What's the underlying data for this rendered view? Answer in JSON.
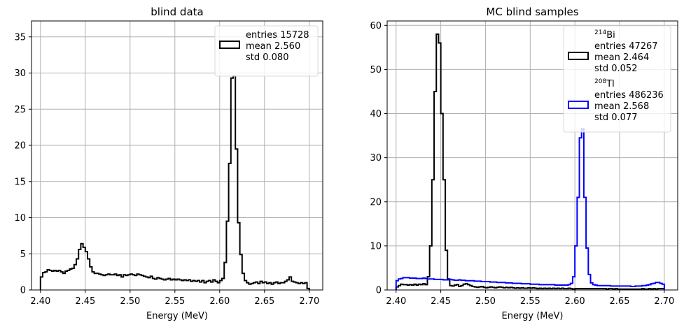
{
  "chart_data": [
    {
      "type": "step",
      "title": "blind data",
      "xlabel": "Energy (MeV)",
      "ylabel": "",
      "xlim": [
        2.39,
        2.715
      ],
      "ylim": [
        0,
        37.2
      ],
      "xticks": [
        "2.40",
        "2.45",
        "2.50",
        "2.55",
        "2.60",
        "2.65",
        "2.70"
      ],
      "yticks": [
        "0",
        "5",
        "10",
        "15",
        "20",
        "25",
        "30",
        "35"
      ],
      "grid": true,
      "legend_position": "top-right",
      "bin_edges_range": [
        2.4,
        2.7
      ],
      "bin_width": 0.0025,
      "series": [
        {
          "color": "#000000",
          "legend_lines": [
            "entries 15728",
            "mean  2.560",
            "std   0.080"
          ],
          "values": [
            1.8,
            2.4,
            2.5,
            2.8,
            2.7,
            2.6,
            2.7,
            2.6,
            2.7,
            2.5,
            2.3,
            2.6,
            2.7,
            2.9,
            3.0,
            3.5,
            4.3,
            5.6,
            6.4,
            5.9,
            5.3,
            4.3,
            3.2,
            2.5,
            2.3,
            2.3,
            2.2,
            2.1,
            2.0,
            2.1,
            2.2,
            2.1,
            2.1,
            2.2,
            2.0,
            2.1,
            1.8,
            2.1,
            2.0,
            2.1,
            2.2,
            2.1,
            2.0,
            2.2,
            2.1,
            2.0,
            1.9,
            1.8,
            1.7,
            1.9,
            1.6,
            1.5,
            1.7,
            1.6,
            1.5,
            1.4,
            1.5,
            1.6,
            1.4,
            1.5,
            1.4,
            1.5,
            1.4,
            1.3,
            1.4,
            1.3,
            1.4,
            1.2,
            1.3,
            1.2,
            1.3,
            1.1,
            1.3,
            1.0,
            1.2,
            1.3,
            1.1,
            1.4,
            1.2,
            1.0,
            1.3,
            1.6,
            3.8,
            9.5,
            17.5,
            29.3,
            29.6,
            19.5,
            9.3,
            4.9,
            2.3,
            1.3,
            1.0,
            0.8,
            0.9,
            1.0,
            1.1,
            0.9,
            1.2,
            1.0,
            1.1,
            0.9,
            1.0,
            0.8,
            1.0,
            1.1,
            0.9,
            1.0,
            1.0,
            1.2,
            1.4,
            1.8,
            1.2,
            1.1,
            1.0,
            0.9,
            1.0,
            0.9,
            1.0,
            0.2
          ]
        }
      ]
    },
    {
      "type": "step",
      "title": "MC blind samples",
      "xlabel": "Energy (MeV)",
      "ylabel": "",
      "xlim": [
        2.39,
        2.715
      ],
      "ylim": [
        0,
        61
      ],
      "xticks": [
        "2.40",
        "2.45",
        "2.50",
        "2.55",
        "2.60",
        "2.65",
        "2.70"
      ],
      "yticks": [
        "0",
        "10",
        "20",
        "30",
        "40",
        "50",
        "60"
      ],
      "grid": true,
      "legend_position": "top-right",
      "bin_edges_range": [
        2.4,
        2.7
      ],
      "bin_width": 0.0025,
      "series": [
        {
          "name_base": "Bi",
          "name_sup": "214",
          "color": "#000000",
          "legend_lines": [
            "entries 47267",
            "mean  2.464",
            "std   0.052"
          ],
          "values": [
            0.7,
            1.0,
            1.3,
            1.2,
            1.2,
            1.1,
            1.2,
            1.1,
            1.3,
            1.1,
            1.3,
            1.2,
            1.4,
            1.2,
            3.0,
            10.0,
            25.0,
            45.0,
            58.0,
            56.0,
            40.0,
            25.0,
            9.0,
            2.5,
            1.0,
            0.9,
            1.1,
            1.2,
            0.8,
            1.0,
            1.3,
            1.4,
            1.2,
            1.0,
            0.8,
            0.7,
            0.6,
            0.7,
            0.8,
            0.6,
            0.5,
            0.6,
            0.7,
            0.6,
            0.5,
            0.6,
            0.7,
            0.6,
            0.5,
            0.6,
            0.5,
            0.6,
            0.5,
            0.4,
            0.5,
            0.4,
            0.5,
            0.4,
            0.4,
            0.5,
            0.4,
            0.5,
            0.4,
            0.3,
            0.4,
            0.3,
            0.4,
            0.3,
            0.4,
            0.3,
            0.4,
            0.3,
            0.4,
            0.3,
            0.4,
            0.3,
            0.3,
            0.4,
            0.3,
            0.2,
            0.3,
            0.3,
            0.3,
            0.3,
            0.3,
            0.3,
            0.3,
            0.3,
            0.3,
            0.3,
            0.3,
            0.3,
            0.3,
            0.3,
            0.2,
            0.3,
            0.3,
            0.2,
            0.3,
            0.2,
            0.2,
            0.2,
            0.2,
            0.2,
            0.2,
            0.2,
            0.2,
            0.2,
            0.2,
            0.2,
            0.3,
            0.2,
            0.2,
            0.3,
            0.2,
            0.3,
            0.2,
            0.3,
            0.3,
            0.3
          ]
        },
        {
          "name_base": "Tl",
          "name_sup": "208",
          "color": "#0000ff",
          "legend_lines": [
            "entries 486236",
            "mean  2.568",
            "std   0.077"
          ],
          "values": [
            2.1,
            2.5,
            2.6,
            2.8,
            2.8,
            2.8,
            2.7,
            2.7,
            2.7,
            2.6,
            2.6,
            2.6,
            2.7,
            2.6,
            2.5,
            2.5,
            2.5,
            2.4,
            2.4,
            2.4,
            2.4,
            2.3,
            2.3,
            2.3,
            2.4,
            2.3,
            2.2,
            2.2,
            2.3,
            2.2,
            2.2,
            2.1,
            2.1,
            2.1,
            2.1,
            2.0,
            2.0,
            2.0,
            1.9,
            1.9,
            1.9,
            1.9,
            1.8,
            1.8,
            1.8,
            1.7,
            1.7,
            1.7,
            1.7,
            1.6,
            1.6,
            1.6,
            1.5,
            1.5,
            1.5,
            1.5,
            1.4,
            1.4,
            1.4,
            1.4,
            1.3,
            1.3,
            1.3,
            1.3,
            1.2,
            1.2,
            1.2,
            1.2,
            1.2,
            1.2,
            1.2,
            1.1,
            1.1,
            1.1,
            1.1,
            1.1,
            1.1,
            1.2,
            1.5,
            3.0,
            10.0,
            21.0,
            34.5,
            36.5,
            21.0,
            9.5,
            3.5,
            1.6,
            1.2,
            1.1,
            1.0,
            1.0,
            1.0,
            1.0,
            1.0,
            1.0,
            0.9,
            0.9,
            0.9,
            0.9,
            0.9,
            0.9,
            0.9,
            0.9,
            0.9,
            0.8,
            0.8,
            0.9,
            0.9,
            0.9,
            1.0,
            1.0,
            1.1,
            1.2,
            1.4,
            1.5,
            1.7,
            1.7,
            1.5,
            1.3
          ]
        }
      ]
    }
  ]
}
